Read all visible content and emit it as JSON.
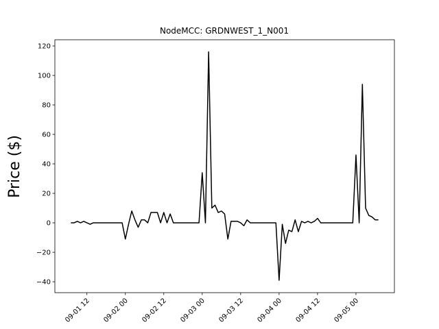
{
  "chart_data": {
    "type": "line",
    "title": "NodeMCC: GRDNWEST_1_N001",
    "y_label": "Price ($)",
    "x": [
      "09-01 07",
      "09-01 08",
      "09-01 09",
      "09-01 10",
      "09-01 11",
      "09-01 12",
      "09-01 13",
      "09-01 14",
      "09-01 15",
      "09-01 16",
      "09-01 17",
      "09-01 18",
      "09-01 19",
      "09-01 20",
      "09-01 21",
      "09-01 22",
      "09-01 23",
      "09-02 00",
      "09-02 01",
      "09-02 02",
      "09-02 03",
      "09-02 04",
      "09-02 05",
      "09-02 06",
      "09-02 07",
      "09-02 08",
      "09-02 09",
      "09-02 10",
      "09-02 11",
      "09-02 12",
      "09-02 13",
      "09-02 14",
      "09-02 15",
      "09-02 16",
      "09-02 17",
      "09-02 18",
      "09-02 19",
      "09-02 20",
      "09-02 21",
      "09-02 22",
      "09-02 23",
      "09-03 00",
      "09-03 01",
      "09-03 02",
      "09-03 03",
      "09-03 04",
      "09-03 05",
      "09-03 06",
      "09-03 07",
      "09-03 08",
      "09-03 09",
      "09-03 10",
      "09-03 11",
      "09-03 12",
      "09-03 13",
      "09-03 14",
      "09-03 15",
      "09-03 16",
      "09-03 17",
      "09-03 18",
      "09-03 19",
      "09-03 20",
      "09-03 21",
      "09-03 22",
      "09-03 23",
      "09-04 00",
      "09-04 01",
      "09-04 02",
      "09-04 03",
      "09-04 04",
      "09-04 05",
      "09-04 06",
      "09-04 07",
      "09-04 08",
      "09-04 09",
      "09-04 10",
      "09-04 11",
      "09-04 12",
      "09-04 13",
      "09-04 14",
      "09-04 15",
      "09-04 16",
      "09-04 17",
      "09-04 18",
      "09-04 19",
      "09-04 20",
      "09-04 21",
      "09-04 22",
      "09-04 23",
      "09-05 00",
      "09-05 01",
      "09-05 02",
      "09-05 03",
      "09-05 04",
      "09-05 05",
      "09-05 06",
      "09-05 07"
    ],
    "series": [
      {
        "color": "#000000",
        "values": [
          0,
          0,
          1,
          0,
          1,
          0,
          -1,
          0,
          0,
          0,
          0,
          0,
          0,
          0,
          0,
          0,
          0,
          -11,
          -1,
          8,
          2,
          -3,
          2,
          2,
          0,
          7,
          7,
          7,
          0,
          7,
          0,
          6,
          0,
          0,
          0,
          0,
          0,
          0,
          0,
          0,
          0,
          34,
          0,
          116,
          10,
          12,
          7,
          8,
          6,
          -11,
          1,
          1,
          1,
          0,
          -2,
          2,
          0,
          0,
          0,
          0,
          0,
          0,
          0,
          0,
          0,
          -39,
          -1,
          -14,
          -5,
          -6,
          2,
          -6,
          1,
          0,
          1,
          0,
          1,
          3,
          0,
          0,
          0,
          0,
          0,
          0,
          0,
          0,
          0,
          0,
          0,
          46,
          0,
          94,
          10,
          5,
          4,
          2,
          2
        ]
      }
    ],
    "xlim": [
      "09-01 02",
      "09-05 12"
    ],
    "xticks": [
      "09-01 12",
      "09-02 00",
      "09-02 12",
      "09-03 00",
      "09-03 12",
      "09-04 00",
      "09-04 12",
      "09-05 00"
    ],
    "ylim": [
      -47.4,
      124.2
    ],
    "yticks": [
      {
        "value": -40,
        "label": "−40"
      },
      {
        "value": -20,
        "label": "−20"
      },
      0,
      20,
      40,
      60,
      80,
      100,
      120
    ]
  }
}
